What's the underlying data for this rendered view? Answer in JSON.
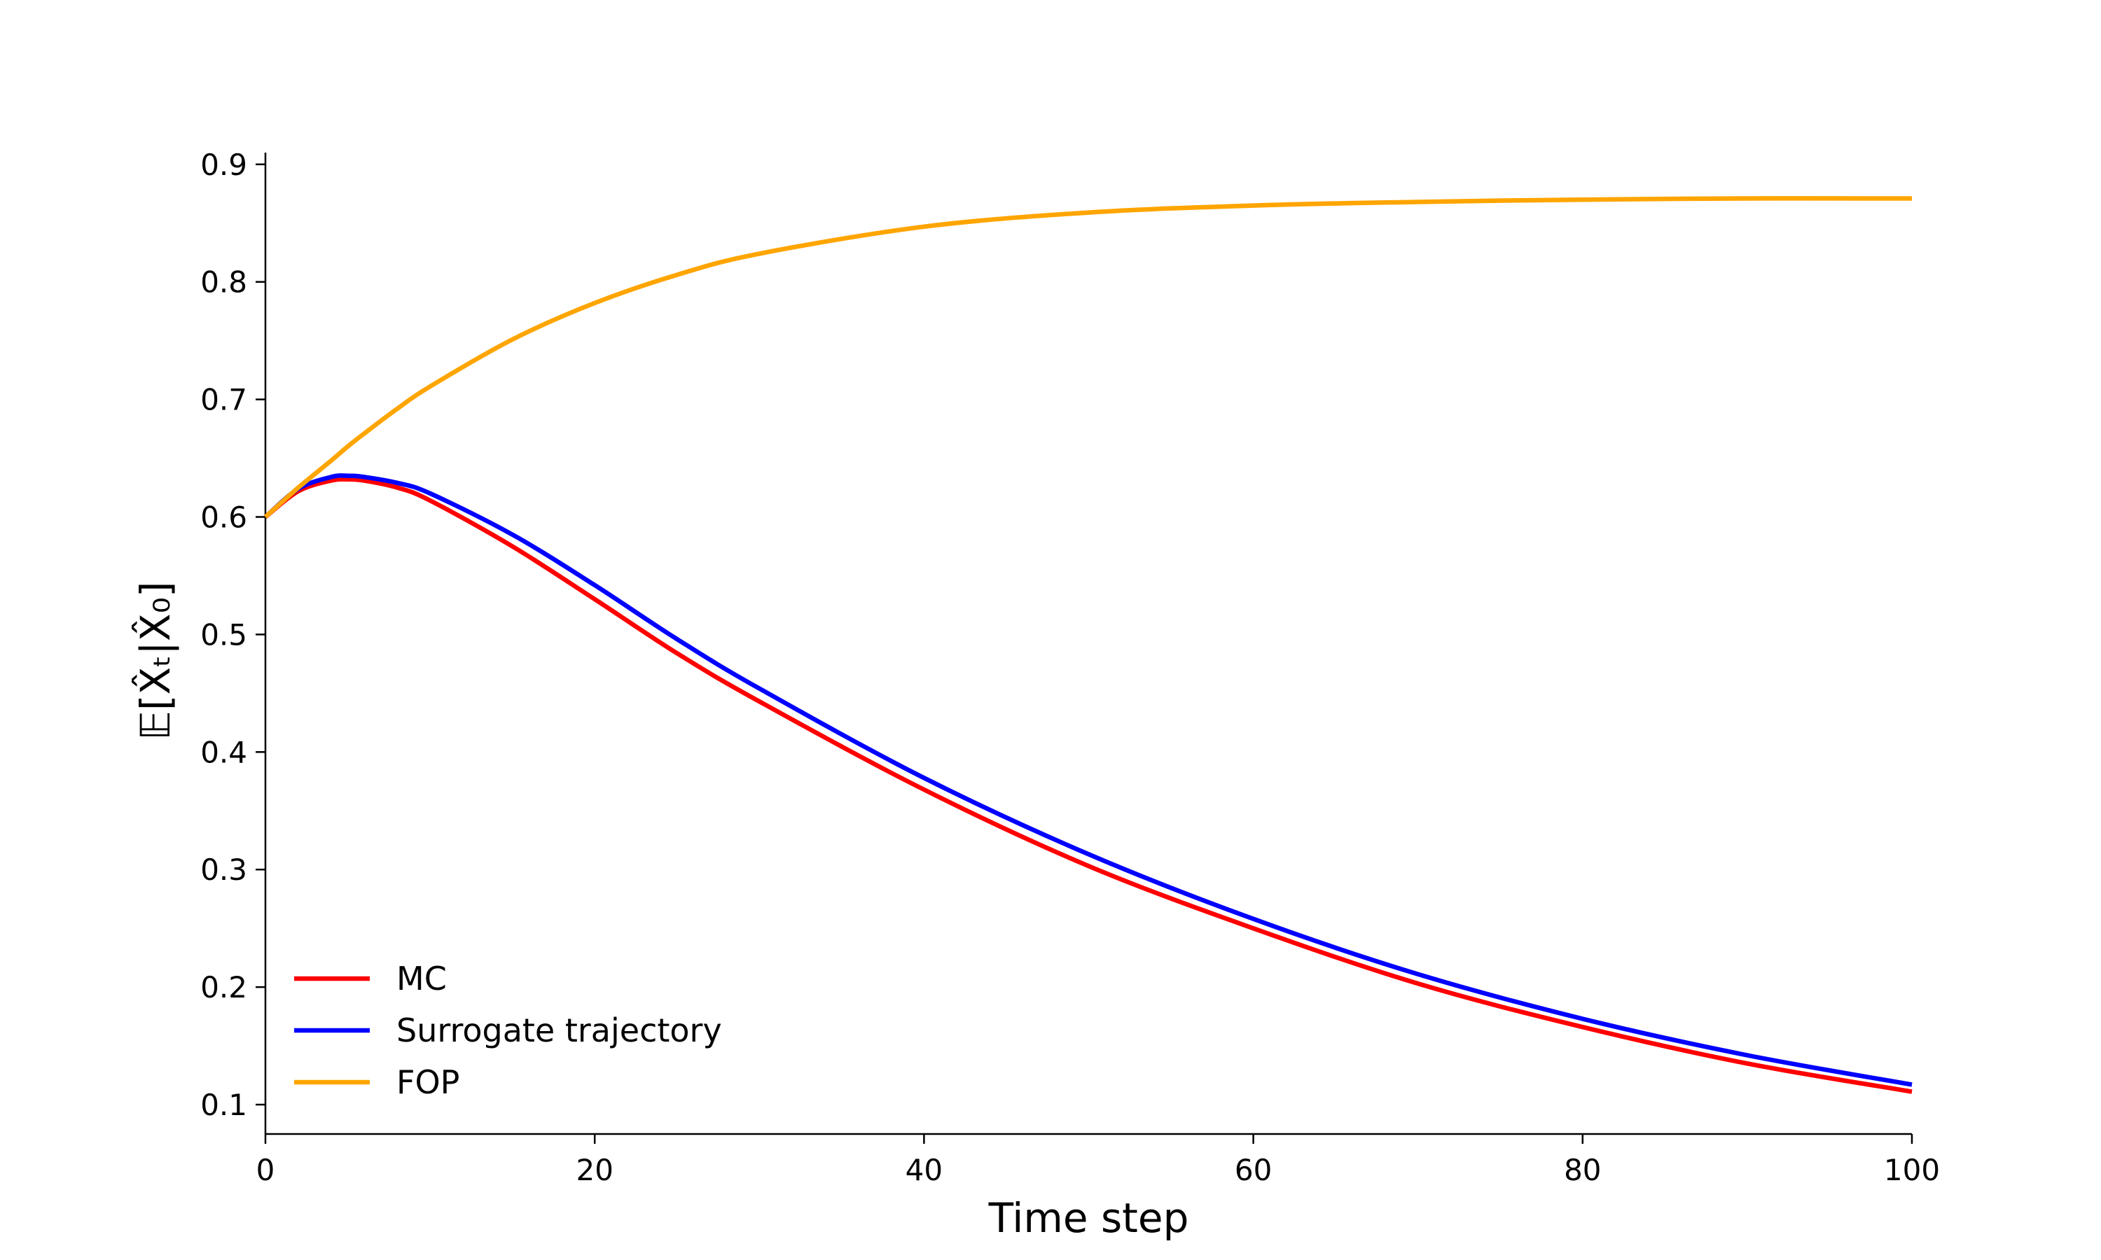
{
  "chart_data": {
    "type": "line",
    "title": "",
    "xlabel": "Time step",
    "ylabel": "𝔼[X̂ₜ|X̂₀]",
    "xlim": [
      0,
      100
    ],
    "ylim": [
      0.075,
      0.91
    ],
    "xticks": [
      0,
      20,
      40,
      60,
      80,
      100
    ],
    "xtick_labels": [
      "0",
      "20",
      "40",
      "60",
      "80",
      "100"
    ],
    "yticks": [
      0.1,
      0.2,
      0.3,
      0.4,
      0.5,
      0.6,
      0.7,
      0.8,
      0.9
    ],
    "ytick_labels": [
      "0.1",
      "0.2",
      "0.3",
      "0.4",
      "0.5",
      "0.6",
      "0.7",
      "0.8",
      "0.9"
    ],
    "grid": false,
    "legend_position": "lower-left",
    "x": [
      0,
      2,
      4,
      5,
      6,
      8,
      10,
      15,
      20,
      25,
      30,
      40,
      50,
      60,
      70,
      80,
      90,
      100
    ],
    "series": [
      {
        "name": "MC",
        "color": "#ff0000",
        "values": [
          0.6,
          0.622,
          0.631,
          0.632,
          0.631,
          0.625,
          0.614,
          0.575,
          0.53,
          0.484,
          0.443,
          0.368,
          0.303,
          0.25,
          0.203,
          0.166,
          0.135,
          0.111
        ]
      },
      {
        "name": "Surrogate trajectory",
        "color": "#0000ff",
        "values": [
          0.6,
          0.624,
          0.634,
          0.635,
          0.634,
          0.629,
          0.62,
          0.585,
          0.542,
          0.496,
          0.454,
          0.378,
          0.313,
          0.258,
          0.211,
          0.173,
          0.142,
          0.117
        ]
      },
      {
        "name": "FOP",
        "color": "#ffa500",
        "values": [
          0.6,
          0.625,
          0.648,
          0.66,
          0.671,
          0.692,
          0.711,
          0.751,
          0.782,
          0.806,
          0.824,
          0.847,
          0.859,
          0.865,
          0.868,
          0.87,
          0.871,
          0.871
        ]
      }
    ]
  }
}
